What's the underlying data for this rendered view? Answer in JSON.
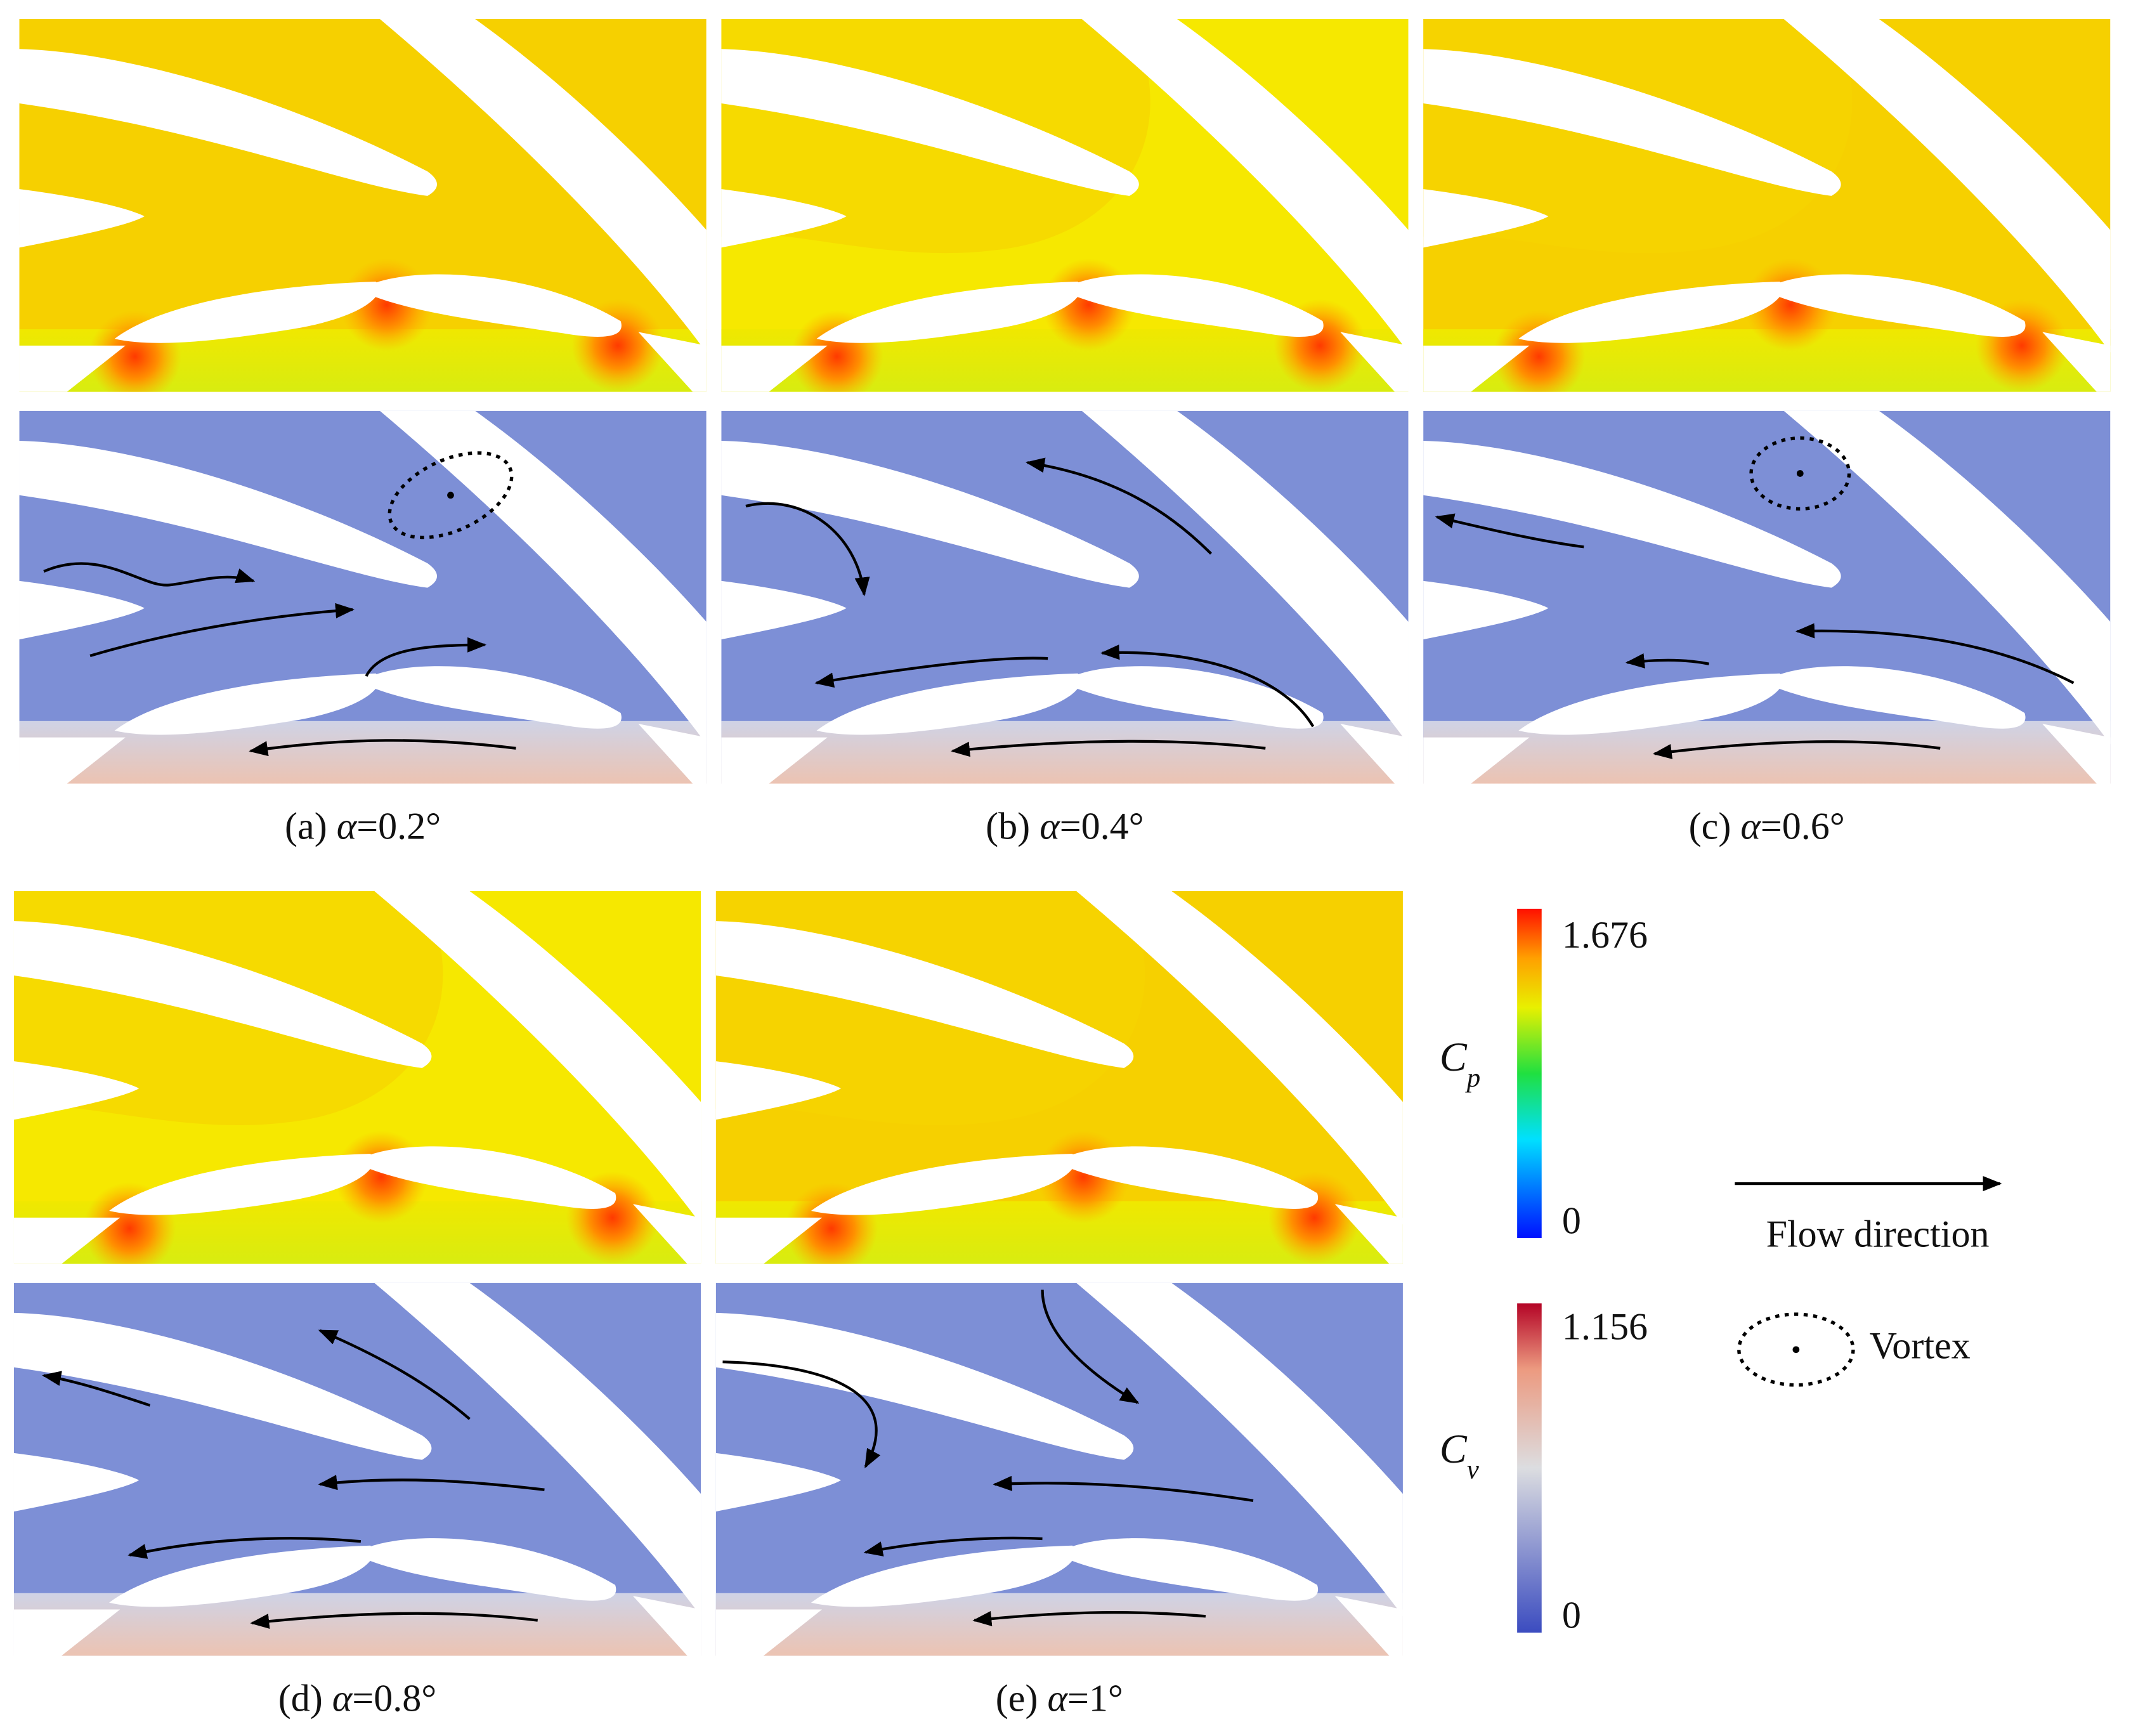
{
  "panels": [
    {
      "label": "(a)",
      "symbol": "α",
      "value": "=0.2°"
    },
    {
      "label": "(b)",
      "symbol": "α",
      "value": "=0.4°"
    },
    {
      "label": "(c)",
      "symbol": "α",
      "value": "=0.6°"
    },
    {
      "label": "(d)",
      "symbol": "α",
      "value": "=0.8°"
    },
    {
      "label": "(e)",
      "symbol": "α",
      "value": "=1°"
    }
  ],
  "colorbars": [
    {
      "symbol": "C",
      "subscript": "p",
      "max": 1.676,
      "min": 0
    },
    {
      "symbol": "C",
      "subscript": "v",
      "max": 1.156,
      "min": 0
    }
  ],
  "legend": {
    "flow": "Flow direction",
    "vortex": "Vortex"
  }
}
